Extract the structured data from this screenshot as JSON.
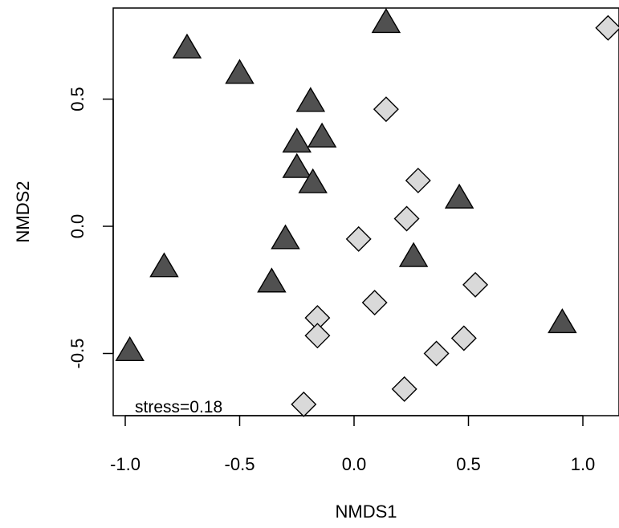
{
  "chart_data": {
    "type": "scatter",
    "title": "",
    "xlabel": "NMDS1",
    "ylabel": "NMDS2",
    "xlim": [
      -1.0,
      1.1
    ],
    "ylim": [
      -0.74,
      0.8
    ],
    "xticks": [
      -1.0,
      -0.5,
      0.0,
      0.5,
      1.0
    ],
    "xtick_labels": [
      "-1.0",
      "-0.5",
      "0.0",
      "0.5",
      "1.0"
    ],
    "yticks": [
      -0.5,
      0.0,
      0.5
    ],
    "ytick_labels": [
      "-0.5",
      "0.0",
      "0.5"
    ],
    "grid": false,
    "annotation": "stress=0.18",
    "series": [
      {
        "marker": "triangle",
        "color": "#505050",
        "x": [
          0.14,
          -0.73,
          -0.5,
          -0.19,
          -0.25,
          -0.14,
          -0.25,
          -0.18,
          0.46,
          -0.3,
          0.26,
          -0.83,
          -0.36,
          0.91,
          -0.98
        ],
        "y": [
          0.8,
          0.7,
          0.6,
          0.49,
          0.33,
          0.35,
          0.23,
          0.17,
          0.11,
          -0.05,
          -0.12,
          -0.16,
          -0.22,
          -0.38,
          -0.49
        ]
      },
      {
        "marker": "diamond",
        "color": "#d9d9d9",
        "x": [
          1.11,
          0.14,
          0.28,
          0.23,
          0.02,
          0.53,
          0.09,
          -0.16,
          -0.16,
          0.48,
          0.36,
          0.22,
          -0.22
        ],
        "y": [
          0.78,
          0.46,
          0.18,
          0.03,
          -0.05,
          -0.23,
          -0.3,
          -0.36,
          -0.43,
          -0.44,
          -0.5,
          -0.64,
          -0.7
        ]
      }
    ]
  }
}
